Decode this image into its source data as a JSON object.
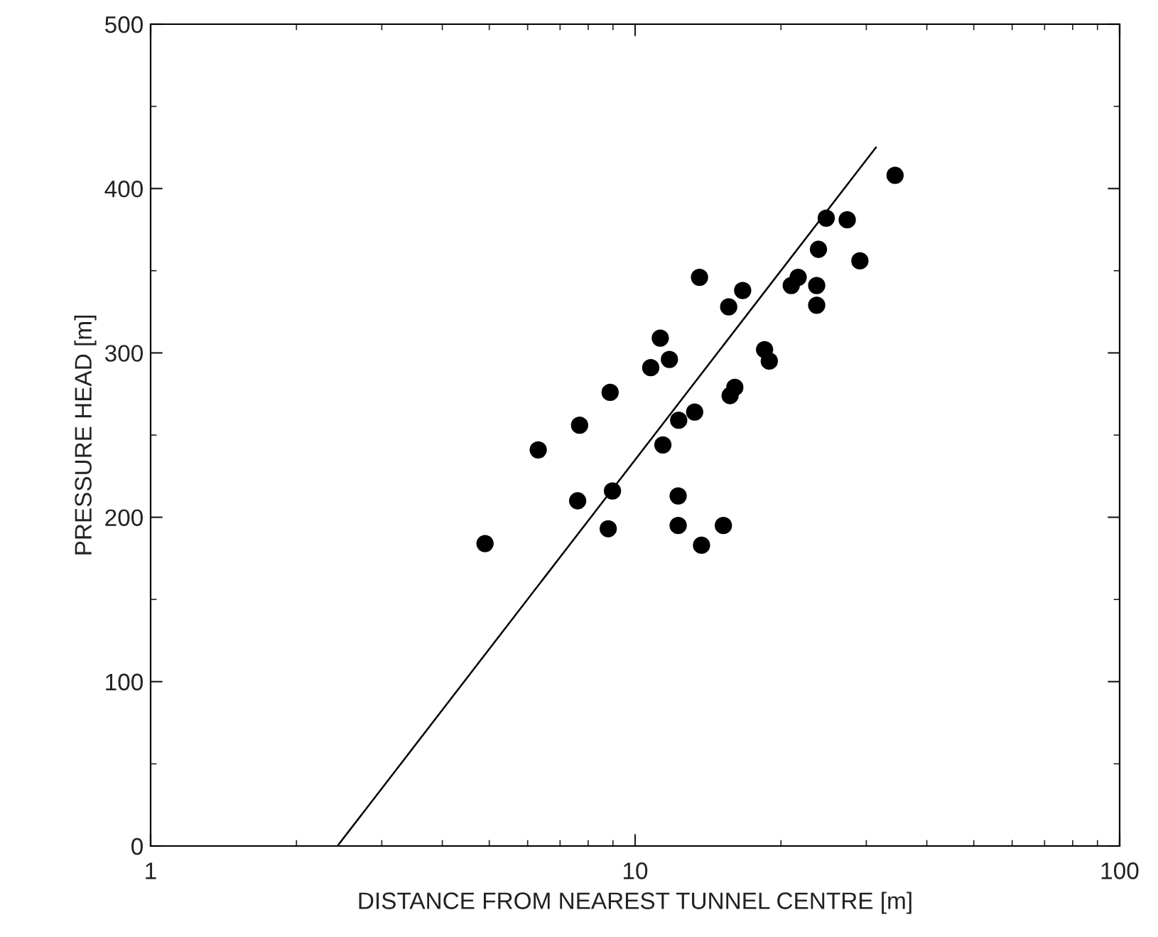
{
  "chart_data": {
    "type": "scatter",
    "xlabel": "DISTANCE FROM NEAREST TUNNEL CENTRE [m]",
    "ylabel": "PRESSURE HEAD [m]",
    "log": "x",
    "xlim": [
      1,
      100
    ],
    "xticks": [
      1,
      10,
      100
    ],
    "ylim": [
      0,
      500
    ],
    "yticks": [
      0,
      100,
      200,
      300,
      400,
      500
    ],
    "grid": false,
    "legend": false,
    "series": [
      {
        "color": "#000000",
        "marker": "circle",
        "x": [
          4.9,
          6.31,
          7.68,
          7.61,
          8.88,
          8.98,
          8.8,
          10.77,
          11.27,
          11.77,
          11.41,
          12.3,
          12.27,
          12.27,
          13.27,
          13.58,
          13.71,
          15.21,
          15.6,
          15.7,
          16.06,
          16.67,
          18.5,
          18.92,
          21.0,
          21.7,
          23.7,
          23.7,
          23.9,
          24.8,
          27.4,
          29.1,
          34.4
        ],
        "values": [
          184,
          241,
          256,
          210,
          276,
          216,
          193,
          291,
          309,
          296,
          244,
          259,
          213,
          195,
          264,
          346,
          183,
          195,
          328,
          274,
          279,
          338,
          302,
          295,
          341,
          346,
          341,
          329,
          363,
          382,
          381,
          356,
          408
        ]
      },
      {
        "type": "line",
        "color": "#000000",
        "marker": "none",
        "line_style": "solid",
        "x": [
          2.43,
          31.4
        ],
        "values": [
          0,
          425
        ]
      }
    ]
  }
}
